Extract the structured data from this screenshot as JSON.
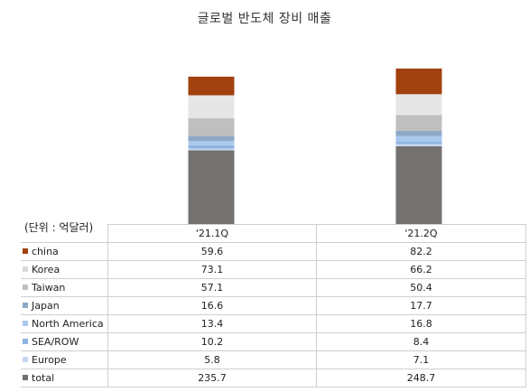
{
  "chart_data": {
    "type": "bar",
    "stacked": true,
    "title": "글로벌 반도체 장비 매출",
    "unit_label": "(단위 : 억달러)",
    "categories": [
      "'21.1Q",
      "'21.2Q"
    ],
    "series": [
      {
        "name": "china",
        "color": "#a0410f",
        "values": [
          59.6,
          82.2
        ]
      },
      {
        "name": "Korea",
        "color": "#e6e6e6",
        "values": [
          73.1,
          66.2
        ]
      },
      {
        "name": "Taiwan",
        "color": "#bfbfbf",
        "values": [
          57.1,
          50.4
        ]
      },
      {
        "name": "Japan",
        "color": "#8ea9c8",
        "values": [
          16.6,
          17.7
        ]
      },
      {
        "name": "North America",
        "color": "#a9c8ee",
        "values": [
          13.4,
          16.8
        ]
      },
      {
        "name": "SEA/ROW",
        "color": "#8fb4e3",
        "values": [
          10.2,
          8.4
        ]
      },
      {
        "name": "Europe",
        "color": "#c5d7f0",
        "values": [
          5.8,
          7.1
        ]
      },
      {
        "name": "total",
        "color": "#757171",
        "values": [
          235.7,
          248.7
        ]
      }
    ],
    "stack_order_bottom_to_top": [
      "total",
      "Europe",
      "SEA/ROW",
      "North America",
      "Japan",
      "Taiwan",
      "Korea",
      "china"
    ],
    "legend": "table-left",
    "grid": false
  }
}
